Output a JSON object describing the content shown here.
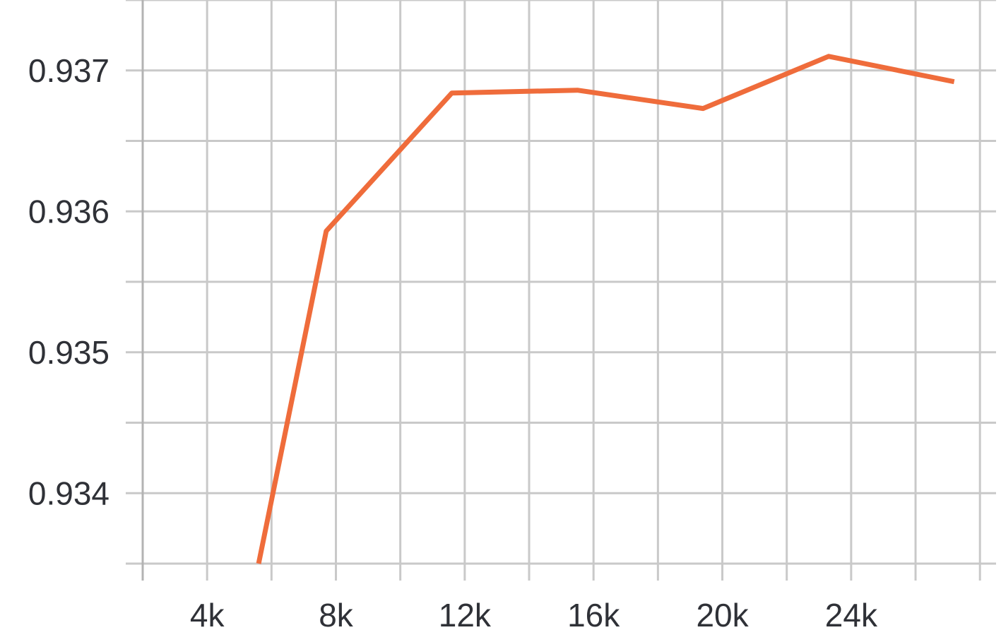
{
  "chart_data": {
    "type": "line",
    "title": "",
    "xlabel": "",
    "ylabel": "",
    "xlim": [
      2000,
      28500
    ],
    "ylim": [
      0.9335,
      0.9375
    ],
    "grid": true,
    "x_ticks": [
      {
        "value": 4000,
        "label": "4k"
      },
      {
        "value": 8000,
        "label": "8k"
      },
      {
        "value": 12000,
        "label": "12k"
      },
      {
        "value": 16000,
        "label": "16k"
      },
      {
        "value": 20000,
        "label": "20k"
      },
      {
        "value": 24000,
        "label": "24k"
      }
    ],
    "y_ticks": [
      {
        "value": 0.934,
        "label": "0.934"
      },
      {
        "value": 0.935,
        "label": "0.935"
      },
      {
        "value": 0.936,
        "label": "0.936"
      },
      {
        "value": 0.937,
        "label": "0.937"
      }
    ],
    "series": [
      {
        "color": "#ef6c3b",
        "points": [
          {
            "x": 5600,
            "y": 0.9335
          },
          {
            "x": 7700,
            "y": 0.93586
          },
          {
            "x": 11600,
            "y": 0.93684
          },
          {
            "x": 15500,
            "y": 0.93686
          },
          {
            "x": 19400,
            "y": 0.93673
          },
          {
            "x": 23300,
            "y": 0.9371
          },
          {
            "x": 27200,
            "y": 0.93692
          }
        ]
      }
    ]
  }
}
